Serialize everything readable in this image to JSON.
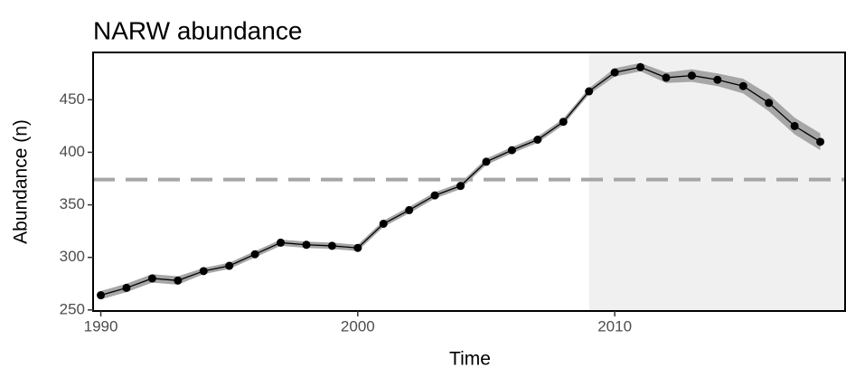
{
  "chart_data": {
    "type": "line",
    "title": "NARW abundance",
    "x_label": "Time",
    "y_label": "Abundance (n)",
    "x": [
      1990,
      1991,
      1992,
      1993,
      1994,
      1995,
      1996,
      1997,
      1998,
      1999,
      2000,
      2001,
      2002,
      2003,
      2004,
      2005,
      2006,
      2007,
      2008,
      2009,
      2010,
      2011,
      2012,
      2013,
      2014,
      2015,
      2016,
      2017,
      2018
    ],
    "series": [
      {
        "color": "#000000",
        "values": [
          264,
          271,
          280,
          278,
          287,
          292,
          303,
          314,
          312,
          311,
          309,
          332,
          345,
          359,
          368,
          391,
          402,
          412,
          429,
          458,
          476,
          481,
          471,
          473,
          469,
          463,
          447,
          425,
          410
        ]
      }
    ],
    "ribbon": {
      "color": "#a6a6a6",
      "lower": [
        260,
        267,
        276,
        274,
        284,
        289,
        300,
        311,
        309,
        308,
        306,
        329,
        342,
        356,
        365,
        388,
        399,
        409,
        426,
        455,
        472,
        477,
        466,
        467,
        463,
        456,
        439,
        417,
        402
      ],
      "upper": [
        268,
        275,
        284,
        282,
        290,
        295,
        306,
        317,
        315,
        314,
        312,
        335,
        348,
        362,
        371,
        394,
        405,
        415,
        432,
        461,
        480,
        485,
        476,
        479,
        475,
        470,
        455,
        433,
        418
      ]
    },
    "hline": 374,
    "hline_color": "#a6a6a6",
    "shade_from": 2009,
    "shade_color": "#f0f0f0",
    "xlim": [
      1989.7,
      2019
    ],
    "ylim": [
      249,
      495
    ],
    "xticks": [
      1990,
      2000,
      2010
    ],
    "yticks": [
      250,
      300,
      350,
      400,
      450
    ]
  }
}
